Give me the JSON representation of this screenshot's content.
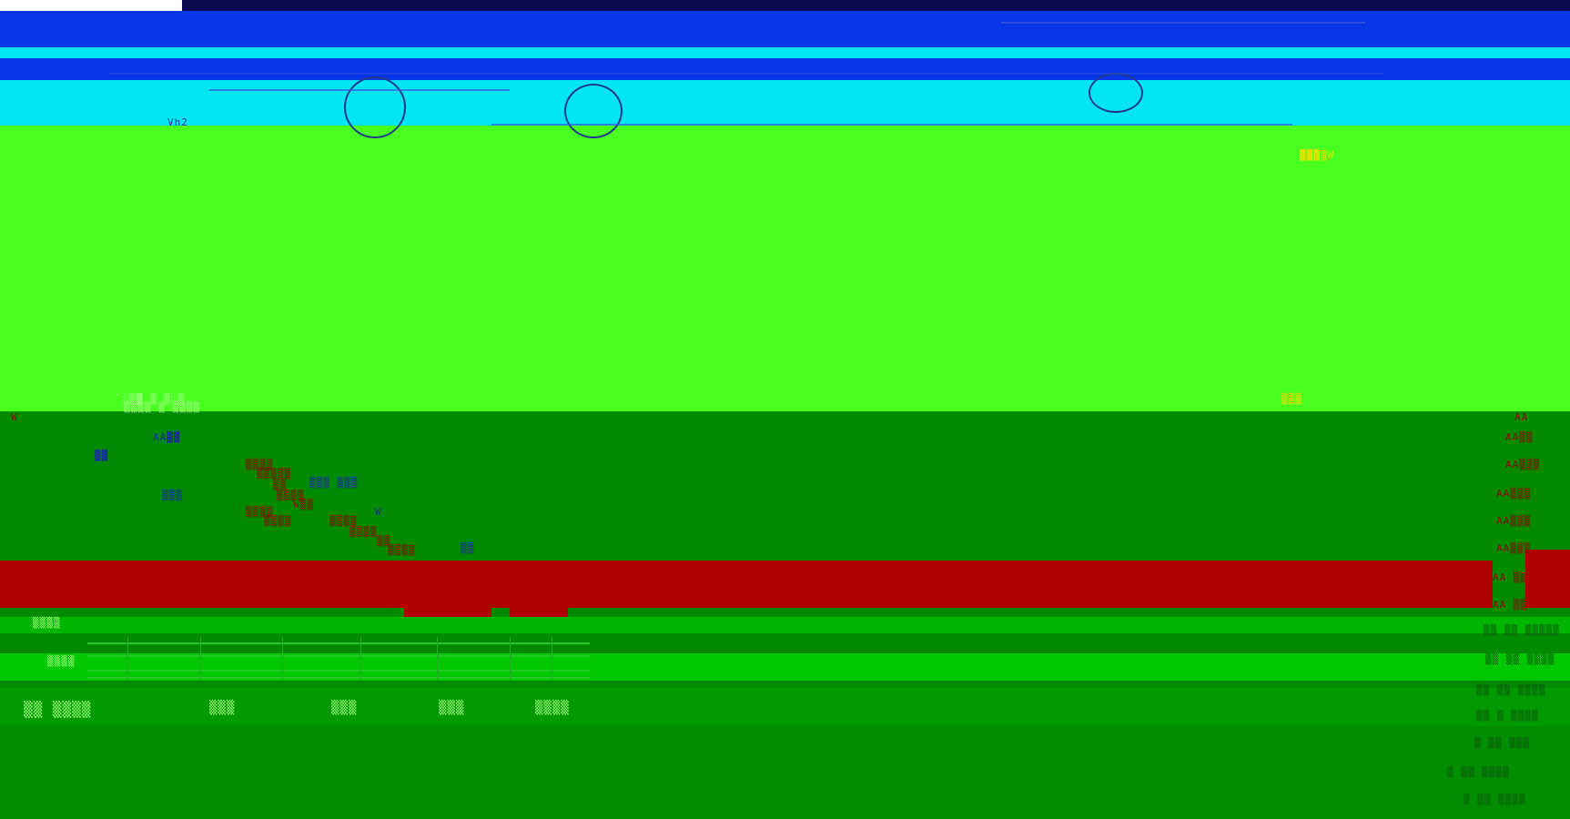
{
  "glitch_fragments": {
    "top_mid": "Vh2",
    "green_left_a": "ﾞ░▒▓ ▒ ▒░▒",
    "green_left_b": "▒▒▒▒ ▒ ▒▒▒▒",
    "green_right": "▒▒▒",
    "ylw_right": "▓▓▓▒W",
    "left_w": "W",
    "col_a": "AA▓▓",
    "col_b": "▓▓",
    "col_c": "▒▒▒",
    "stair_1": "▒▒▒▒",
    "stair_2": "▒▒▒▒▒",
    "stair_3": "▒▒",
    "stair_4": "▒▒▒▒",
    "stair_5": "W▒▒",
    "stair_6": "▒▒▒▒",
    "stair_7": "▒▒▒▒",
    "stair_8": "▒▒▒▒",
    "stair_9": "▒▒▒▒",
    "stair_10": "▒▒",
    "stair_11": "▒▒▒▒",
    "blue_1": "▒▒▒  ▒▒▒",
    "blue_2": "W",
    "blue_3": "▒▒",
    "right_1": "AA",
    "right_2": "AA▒▒",
    "right_3": "AA▒▒▒",
    "right_4": "AA▒▒▒",
    "right_5": "AA▒▒▒",
    "right_6": "AA▒▒▒",
    "right_7": "AA ▒▒",
    "right_8": "AA ▒▒",
    "right_9": "▒▒ ▒▒ ▒▒▒▒▒",
    "right_10": "▒▒ ▒▒ ▒▒▒▒",
    "right_11": "▒▒ ▒▒ ▒▒▒▒",
    "right_12": "▒▒ ▒ ▒▒▒▒",
    "right_13": "▒ ▒▒  ▒▒▒",
    "right_14": "▒ ▒▒  ▒▒▒▒",
    "right_15": "▒ ▒▒  ▒▒▒▒",
    "axis_a": "▒▒▒▒",
    "axis_b": "▒▒▒▒",
    "row_1": "▒▒▒▒▒",
    "row_2": "▒▒▒▒",
    "row_3": "▒▒▒▒",
    "row_4": "▒▒▒▒",
    "row_5": "▒▒▒▒",
    "status_a": "▒▒ ▒▒▒▒",
    "status_b": "▒▒▒",
    "status_c": "▒▒▒",
    "status_d": "▒▒▒",
    "status_e": "▒▒▒▒"
  }
}
